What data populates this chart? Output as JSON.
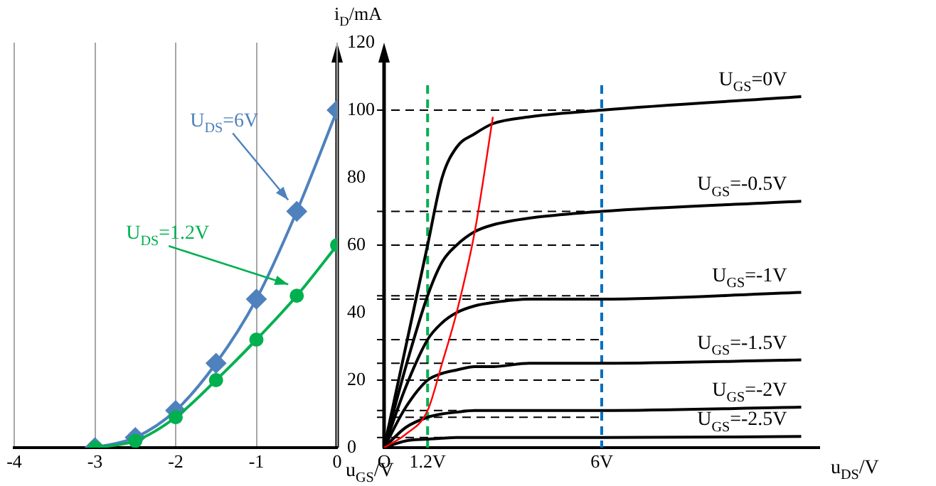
{
  "chart_data": [
    {
      "type": "line",
      "xlabel": "u$_{GS}$/V",
      "ylabel": "i$_{D}$/mA",
      "x": [
        -3,
        -2.5,
        -2,
        -1.5,
        -1,
        -0.5,
        0
      ],
      "xlim": [
        -4,
        0
      ],
      "xticks": [
        -4,
        -3,
        -2,
        -1,
        0
      ],
      "ylim": [
        0,
        120
      ],
      "yticks": [
        0,
        20,
        40,
        60,
        80,
        100,
        120
      ],
      "grid": "x",
      "legend": false,
      "series": [
        {
          "name": "U$_{DS}$=6V",
          "color": "#4f81bd",
          "marker": "diamond",
          "values": [
            0,
            3,
            11,
            25,
            44,
            70,
            100
          ]
        },
        {
          "name": "U$_{DS}$=1.2V",
          "color": "#00b050",
          "marker": "circle",
          "values": [
            0,
            2,
            9,
            20,
            32,
            45,
            60
          ]
        }
      ]
    },
    {
      "type": "line",
      "xlabel": "u$_{DS}$/V",
      "x": [
        0,
        0.6,
        1.2,
        1.6,
        2,
        2.5,
        3,
        4,
        6,
        11.5
      ],
      "xlim": [
        0,
        12
      ],
      "xticks": [
        {
          "value": 0,
          "label": "O"
        },
        {
          "value": 1.2,
          "label": "1.2V"
        },
        {
          "value": 6,
          "label": "6V"
        }
      ],
      "ylim": [
        0,
        120
      ],
      "tick_labels": "x",
      "legend": false,
      "marker": "none",
      "series": [
        {
          "name": "U$_{GS}$=0V",
          "color": "#000000",
          "values": [
            0,
            30,
            60,
            80,
            89,
            93,
            96,
            98,
            100,
            104
          ]
        },
        {
          "name": "U$_{GS}$=-0.5V",
          "color": "#000000",
          "values": [
            0,
            24,
            45,
            55,
            60,
            64,
            66,
            68,
            70,
            73
          ]
        },
        {
          "name": "U$_{GS}$=-1V",
          "color": "#000000",
          "values": [
            0,
            18,
            32,
            37,
            40,
            42,
            43,
            44,
            44,
            46
          ]
        },
        {
          "name": "U$_{GS}$=-1.5V",
          "color": "#000000",
          "values": [
            0,
            12,
            20,
            22,
            23,
            24,
            24,
            25,
            25,
            26
          ]
        },
        {
          "name": "U$_{GS}$=-2V",
          "color": "#000000",
          "values": [
            0,
            6,
            9,
            10,
            10.5,
            11,
            11,
            11,
            11,
            12
          ]
        },
        {
          "name": "U$_{GS}$=-2.5V",
          "color": "#000000",
          "values": [
            0,
            2,
            2.5,
            2.8,
            3,
            3,
            3,
            3,
            3,
            3.3
          ]
        },
        {
          "color": "#ff0000",
          "x": [
            0,
            0.6,
            1.2,
            1.6,
            2,
            2.5,
            3
          ],
          "values": [
            0,
            4,
            11,
            25,
            40,
            64,
            98
          ]
        }
      ],
      "ref_lines": [
        {
          "axis": "x",
          "value": 1.2,
          "color": "#00b050",
          "line_style": "dashed"
        },
        {
          "axis": "x",
          "value": 6,
          "color": "#0070c0",
          "line_style": "dashed"
        },
        {
          "axis": "y",
          "value": 100,
          "color": "#000000",
          "line_style": "dashed"
        },
        {
          "axis": "y",
          "value": 70,
          "color": "#000000",
          "line_style": "dashed"
        },
        {
          "axis": "y",
          "value": 60,
          "color": "#000000",
          "line_style": "dashed"
        },
        {
          "axis": "y",
          "value": 45,
          "color": "#000000",
          "line_style": "dashed"
        },
        {
          "axis": "y",
          "value": 44,
          "color": "#000000",
          "line_style": "dashed"
        },
        {
          "axis": "y",
          "value": 32,
          "color": "#000000",
          "line_style": "dashed"
        },
        {
          "axis": "y",
          "value": 25,
          "color": "#000000",
          "line_style": "dashed"
        },
        {
          "axis": "y",
          "value": 20,
          "color": "#000000",
          "line_style": "dashed"
        },
        {
          "axis": "y",
          "value": 11,
          "color": "#000000",
          "line_style": "dashed"
        },
        {
          "axis": "y",
          "value": 9,
          "color": "#000000",
          "line_style": "dashed"
        },
        {
          "axis": "y",
          "value": 3,
          "color": "#000000",
          "line_style": "dashed"
        }
      ]
    }
  ]
}
